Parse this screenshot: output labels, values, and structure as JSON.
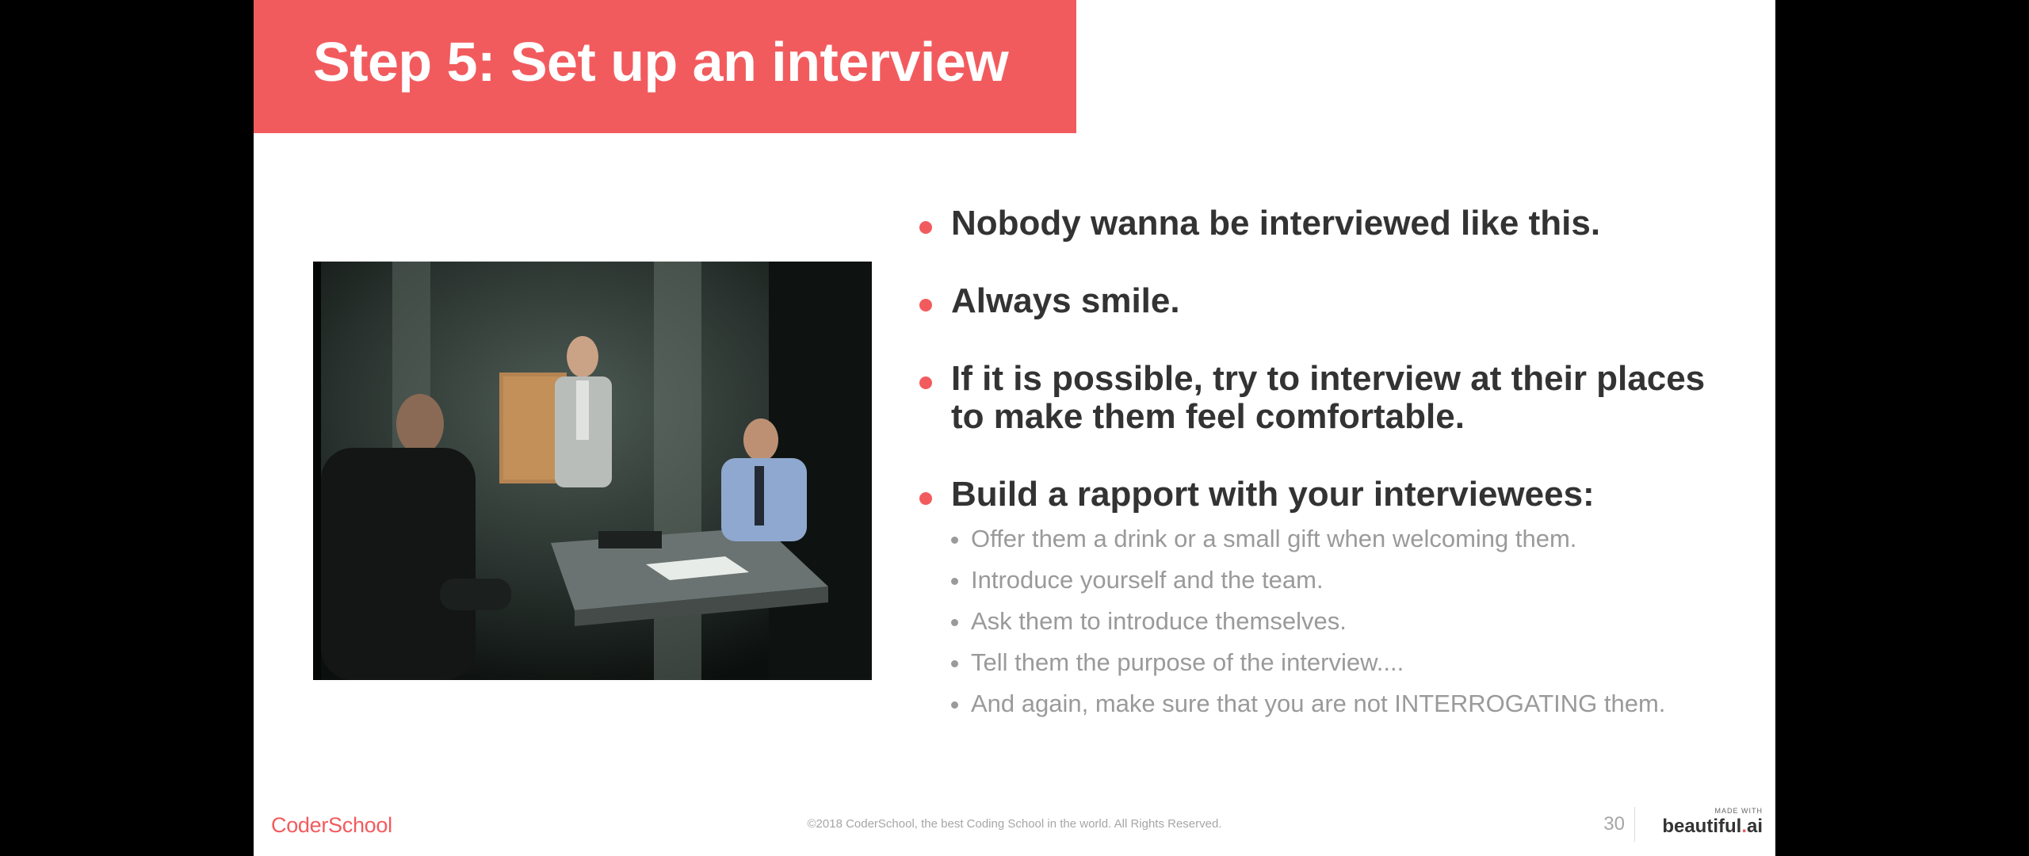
{
  "slide": {
    "title": "Step 5: Set up an interview",
    "bullets": [
      {
        "text": "Nobody wanna be interviewed like this."
      },
      {
        "text": "Always smile."
      },
      {
        "text": "If it is possible, try to interview at their places to make them feel comfortable."
      },
      {
        "text": "Build a rapport with your interviewees:",
        "sub_items": [
          "Offer them a drink or a small gift when welcoming them.",
          "Introduce yourself and the team.",
          "Ask them to introduce themselves.",
          "Tell them the purpose of the interview....",
          "And again, make sure that you are not INTERROGATING them."
        ]
      }
    ],
    "image_icon": "interrogation-room-photo"
  },
  "footer": {
    "logo": "CoderSchool",
    "copyright": "©2018 CoderSchool, the best Coding School in the world. All Rights Reserved.",
    "page_number": "30",
    "made_with_label": "MADE WITH",
    "brand_name": "beautiful",
    "brand_dot": ".",
    "brand_suffix": "ai"
  },
  "colors": {
    "accent": "#f25b5e",
    "heading_text": "#333333",
    "sub_text": "#9a9a9a",
    "background_outer": "#000000",
    "slide_background": "#ffffff"
  }
}
